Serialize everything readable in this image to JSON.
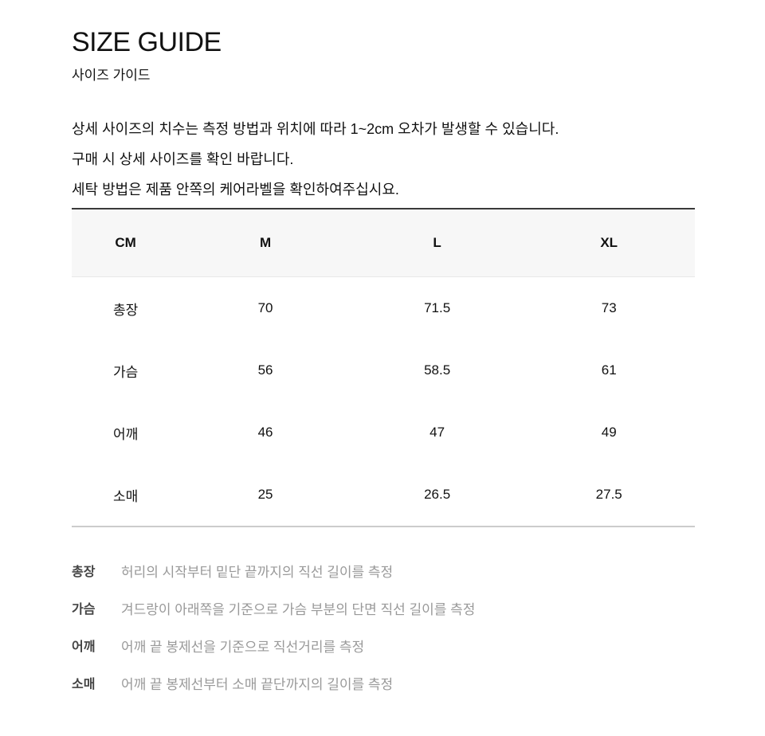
{
  "page": {
    "title": "SIZE GUIDE",
    "subtitle": "사이즈 가이드",
    "intro_lines": [
      "상세 사이즈의 치수는 측정 방법과 위치에 따라 1~2cm 오차가 발생할 수 있습니다.",
      "구매 시 상세 사이즈를 확인 바랍니다.",
      "세탁 방법은 제품 안쪽의 케어라벨을 확인하여주십시요."
    ]
  },
  "size_table": {
    "unit_header": "CM",
    "columns": [
      "CM",
      "M",
      "L",
      "XL"
    ],
    "rows": [
      {
        "label": "총장",
        "values": [
          "70",
          "71.5",
          "73"
        ]
      },
      {
        "label": "가슴",
        "values": [
          "56",
          "58.5",
          "61"
        ]
      },
      {
        "label": "어깨",
        "values": [
          "46",
          "47",
          "49"
        ]
      },
      {
        "label": "소매",
        "values": [
          "25",
          "26.5",
          "27.5"
        ]
      }
    ]
  },
  "measurement_guide": [
    {
      "label": "총장",
      "description": "허리의 시작부터 밑단 끝까지의 직선 길이를 측정"
    },
    {
      "label": "가슴",
      "description": "겨드랑이 아래쪽을 기준으로 가슴 부분의 단면 직선 길이를 측정"
    },
    {
      "label": "어깨",
      "description": "어깨 끝 봉제선을 기준으로 직선거리를 측정"
    },
    {
      "label": "소매",
      "description": "어깨 끝 봉제선부터 소매 끝단까지의 길이를 측정"
    }
  ],
  "colors": {
    "text_primary": "#111111",
    "text_secondary": "#999999",
    "guide_label_color": "#444444",
    "table_header_bg": "#f7f7f7",
    "table_top_border": "#3a3a3a",
    "table_bottom_border": "#cccccc",
    "header_divider": "#e8e8e8"
  }
}
